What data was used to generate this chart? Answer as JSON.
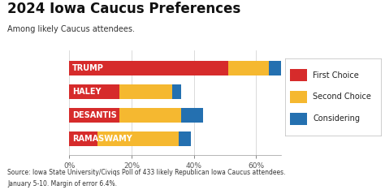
{
  "title": "2024 Iowa Caucus Preferences",
  "subtitle": "Among likely Caucus attendees.",
  "candidates": [
    "TRUMP",
    "HALEY",
    "DESANTIS",
    "RAMASWAMY"
  ],
  "first_choice": [
    51,
    16,
    16,
    9
  ],
  "second_choice": [
    13,
    17,
    20,
    26
  ],
  "considering": [
    4,
    3,
    7,
    4
  ],
  "colors": {
    "first": "#d62b2b",
    "second": "#f5b830",
    "consider": "#2470b0"
  },
  "xlim": [
    0,
    68
  ],
  "xticks": [
    0,
    20,
    40,
    60
  ],
  "xticklabels": [
    "0%",
    "20%",
    "40%",
    "60%"
  ],
  "footer_line1": "Source: Iowa State University/Civiqs Poll of 433 likely Republican Iowa Caucus attendees.",
  "footer_line2": "January 5-10. Margin of error 6.4%.",
  "background_color": "#f0eeea",
  "bar_label_color": "#ffffff",
  "title_fontsize": 12,
  "subtitle_fontsize": 7,
  "bar_height": 0.62,
  "label_fontsize": 7,
  "footer_fontsize": 5.5,
  "legend_fontsize": 7
}
